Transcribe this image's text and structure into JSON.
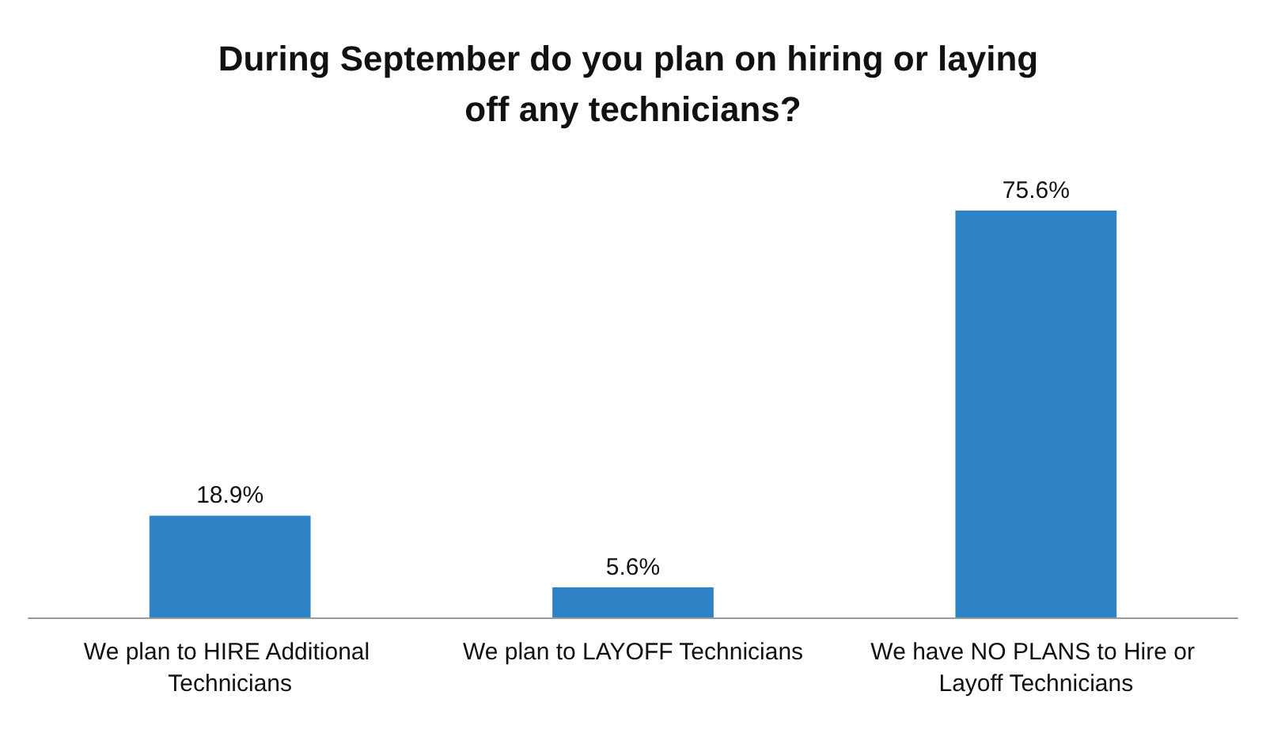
{
  "chart_data": {
    "type": "bar",
    "title": "During September do you plan on hiring or laying off any technicians?",
    "categories": [
      "We plan to HIRE Additional Technicians",
      "We plan to LAYOFF Technicians",
      "We have NO PLANS to Hire or Layoff Technicians"
    ],
    "values": [
      18.9,
      5.6,
      75.6
    ],
    "value_labels": [
      "18.9%",
      "5.6%",
      "75.6%"
    ],
    "color": "#2e83c6"
  }
}
